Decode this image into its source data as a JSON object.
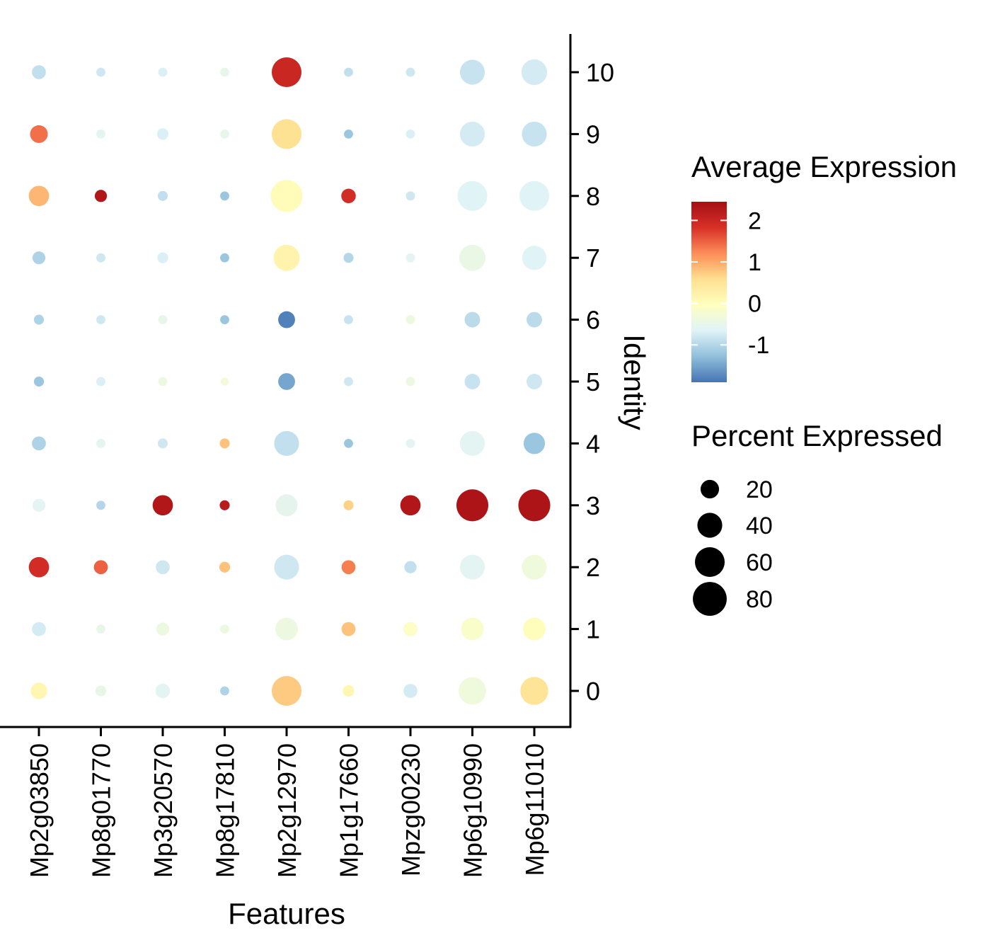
{
  "chart_data": {
    "type": "scatter",
    "subtype": "dot-plot",
    "xlabel": "Features",
    "ylabel": "Identity",
    "features": [
      "Mp2g03850",
      "Mp8g01770",
      "Mp3g20570",
      "Mp8g17810",
      "Mp2g12970",
      "Mp1g17660",
      "Mpzg00230",
      "Mp6g10990",
      "Mp6g11010"
    ],
    "identities": [
      "0",
      "1",
      "2",
      "3",
      "4",
      "5",
      "6",
      "7",
      "8",
      "9",
      "10"
    ],
    "percent_expressed": [
      [
        15,
        5,
        11,
        3,
        60,
        6,
        10,
        50,
        52
      ],
      [
        10,
        3,
        8,
        3,
        32,
        10,
        10,
        32,
        32
      ],
      [
        25,
        10,
        10,
        5,
        40,
        10,
        7,
        40,
        40
      ],
      [
        8,
        3,
        25,
        4,
        30,
        4,
        25,
        70,
        70
      ],
      [
        10,
        3,
        4,
        4,
        40,
        3,
        3,
        40,
        28
      ],
      [
        4,
        3,
        3,
        2,
        16,
        3,
        3,
        13,
        13
      ],
      [
        4,
        3,
        3,
        3,
        16,
        3,
        3,
        13,
        13
      ],
      [
        8,
        3,
        5,
        3,
        45,
        4,
        3,
        45,
        38
      ],
      [
        25,
        7,
        4,
        3,
        70,
        11,
        3,
        60,
        60
      ],
      [
        18,
        3,
        6,
        3,
        60,
        3,
        3,
        40,
        40
      ],
      [
        10,
        3,
        3,
        3,
        60,
        3,
        3,
        40,
        43
      ]
    ],
    "average_expression": [
      [
        0.15,
        -0.5,
        -0.6,
        -1.05,
        0.75,
        0.15,
        -0.75,
        -0.35,
        0.5
      ],
      [
        -0.75,
        -0.5,
        -0.4,
        -0.4,
        -0.4,
        0.8,
        -0.1,
        -0.15,
        0.0
      ],
      [
        1.9,
        1.5,
        -0.8,
        0.8,
        -0.8,
        1.3,
        -0.9,
        -0.6,
        -0.35
      ],
      [
        -0.6,
        -1.0,
        2.3,
        2.2,
        -0.55,
        0.7,
        2.3,
        2.35,
        2.35
      ],
      [
        -1.05,
        -0.6,
        -0.8,
        0.8,
        -0.9,
        -1.2,
        -0.6,
        -0.6,
        -1.2
      ],
      [
        -1.2,
        -0.7,
        -0.4,
        -0.3,
        -1.5,
        -0.8,
        -0.4,
        -0.85,
        -0.8
      ],
      [
        -1.05,
        -0.8,
        -0.5,
        -1.2,
        -1.8,
        -0.85,
        -0.4,
        -0.95,
        -0.95
      ],
      [
        -1.05,
        -0.8,
        -0.7,
        -1.2,
        0.2,
        -1.0,
        -0.6,
        -0.45,
        -0.65
      ],
      [
        0.9,
        2.3,
        -0.9,
        -1.2,
        0.05,
        1.9,
        -0.8,
        -0.65,
        -0.65
      ],
      [
        1.4,
        -0.6,
        -0.7,
        -0.5,
        0.55,
        -1.2,
        -0.7,
        -0.75,
        -0.85
      ],
      [
        -0.9,
        -0.8,
        -0.7,
        -0.5,
        2.0,
        -0.9,
        -0.8,
        -0.85,
        -0.75
      ]
    ],
    "xlim": [
      0.5,
      9.5
    ],
    "ylim": [
      -0.6,
      10.6
    ],
    "color_legend": {
      "title": "Average Expression",
      "ticks": [
        "2",
        "1",
        "0",
        "-1"
      ],
      "tick_values": [
        2,
        1,
        0,
        -1
      ],
      "range": [
        -1.9,
        2.45
      ],
      "gradient": [
        "#4575b4",
        "#91bfdb",
        "#e0f3f8",
        "#ffffbf",
        "#fee090",
        "#fc8d59",
        "#d73027",
        "#a50f15"
      ]
    },
    "size_legend": {
      "title": "Percent Expressed",
      "labels": [
        "20",
        "40",
        "60",
        "80"
      ],
      "values": [
        20,
        40,
        60,
        80
      ],
      "color": "#000000"
    }
  }
}
